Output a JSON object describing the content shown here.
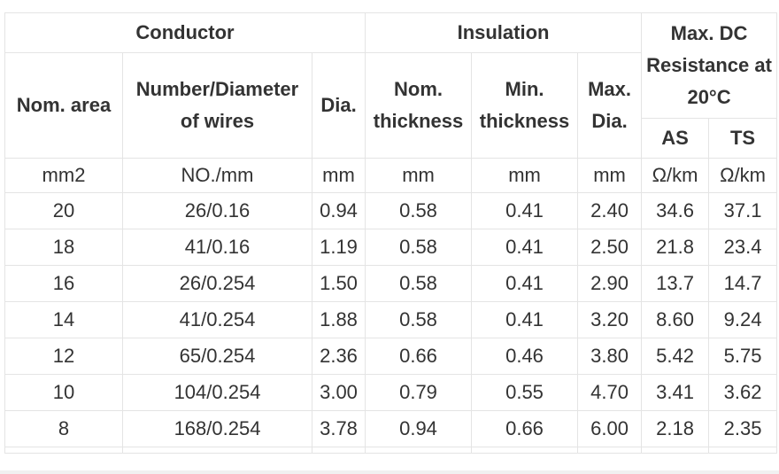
{
  "table": {
    "group_headers": [
      "Conductor",
      "Insulation",
      "Max. DC Resistance at 20°C"
    ],
    "columns": [
      "Nom. area",
      "Number/Diameter of wires",
      "Dia.",
      "Nom. thickness",
      "Min. thickness",
      "Max. Dia.",
      "AS",
      "TS"
    ],
    "units": [
      "mm2",
      "NO./mm",
      "mm",
      "mm",
      "mm",
      "mm",
      "Ω/km",
      "Ω/km"
    ],
    "rows": [
      [
        "20",
        "26/0.16",
        "0.94",
        "0.58",
        "0.41",
        "2.40",
        "34.6",
        "37.1"
      ],
      [
        "18",
        "41/0.16",
        "1.19",
        "0.58",
        "0.41",
        "2.50",
        "21.8",
        "23.4"
      ],
      [
        "16",
        "26/0.254",
        "1.50",
        "0.58",
        "0.41",
        "2.90",
        "13.7",
        "14.7"
      ],
      [
        "14",
        "41/0.254",
        "1.88",
        "0.58",
        "0.41",
        "3.20",
        "8.60",
        "9.24"
      ],
      [
        "12",
        "65/0.254",
        "2.36",
        "0.66",
        "0.46",
        "3.80",
        "5.42",
        "5.75"
      ],
      [
        "10",
        "104/0.254",
        "3.00",
        "0.79",
        "0.55",
        "4.70",
        "3.41",
        "3.62"
      ],
      [
        "8",
        "168/0.254",
        "3.78",
        "0.94",
        "0.66",
        "6.00",
        "2.18",
        "2.35"
      ]
    ]
  },
  "colors": {
    "border": "#e4e4e4",
    "text": "#333333",
    "bottom_strip": "#f1f1f1"
  }
}
